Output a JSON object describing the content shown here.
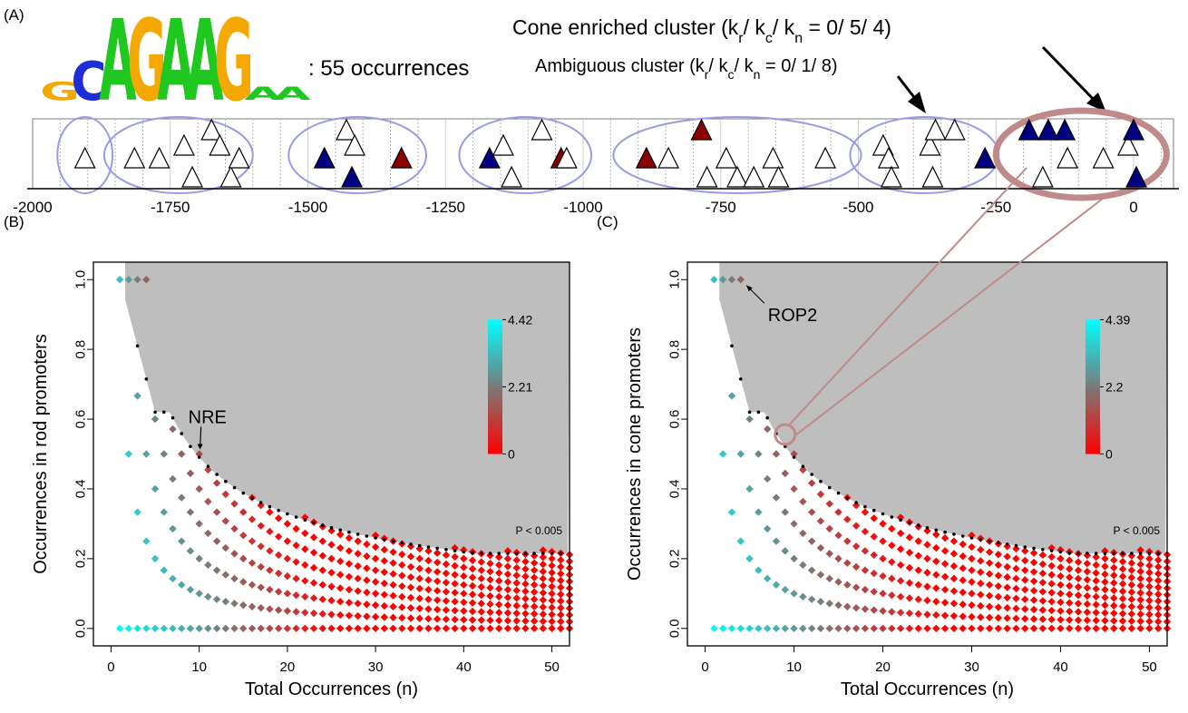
{
  "panel_labels": {
    "a": "(A)",
    "b": "(B)",
    "c": "(C)"
  },
  "motif": {
    "occurrences_text": ": 55 occurrences",
    "logo_letters": [
      {
        "base": "G",
        "color": "#f5a800",
        "height": 0.22
      },
      {
        "base": "C",
        "color": "#1f2dd6",
        "height": 0.48
      },
      {
        "base": "A",
        "color": "#1ec81e",
        "height": 1.0
      },
      {
        "base": "G",
        "color": "#f5a800",
        "height": 1.0
      },
      {
        "base": "A",
        "color": "#1ec81e",
        "height": 1.0
      },
      {
        "base": "A",
        "color": "#1ec81e",
        "height": 1.0
      },
      {
        "base": "G",
        "color": "#f5a800",
        "height": 1.0
      },
      {
        "base": "A",
        "color": "#1ec81e",
        "height": 0.16
      },
      {
        "base": "A",
        "color": "#1ec81e",
        "height": 0.16
      }
    ]
  },
  "annotations": {
    "cone_cluster": {
      "prefix": "Cone enriched cluster (k",
      "r": "r",
      "sep1": "/ k",
      "c": "c",
      "sep2": "/ k",
      "n": "n",
      "suffix": " = 0/ 5/ 4)"
    },
    "ambiguous_cluster": {
      "prefix": "Ambiguous cluster (k",
      "r": "r",
      "sep1": "/ k",
      "c": "c",
      "sep2": "/ k",
      "n": "n",
      "suffix": " = 0/ 1/ 8)"
    },
    "nre": "NRE",
    "rop2": "ROP2",
    "pvalue": "P < 0.005"
  },
  "colors": {
    "rod": "#8b0000",
    "cone": "#000080",
    "neutral": "#ffffff",
    "cluster_ring": "#9a9ae8",
    "cone_ring": "#c08a8a",
    "threshold_region": "#bebebe",
    "scale_high": "#00ffff",
    "scale_mid": "#7a7a7a",
    "scale_low": "#ff0000"
  },
  "chart_data": [
    {
      "type": "scatter",
      "panel": "A",
      "title": "",
      "xlim": [
        -2000,
        100
      ],
      "xticks": [
        -2000,
        -1750,
        -1500,
        -1250,
        -1000,
        -750,
        -500,
        -250,
        0
      ],
      "legend": "none",
      "series": [
        {
          "name": "",
          "points": [
            {
              "x": -1905,
              "lane": 1,
              "kind": "neutral"
            },
            {
              "x": -1815,
              "lane": 1,
              "kind": "neutral"
            },
            {
              "x": -1770,
              "lane": 1,
              "kind": "neutral"
            },
            {
              "x": -1725,
              "lane": 2,
              "kind": "neutral"
            },
            {
              "x": -1710,
              "lane": 0,
              "kind": "neutral"
            },
            {
              "x": -1675,
              "lane": 3,
              "kind": "neutral"
            },
            {
              "x": -1660,
              "lane": 2,
              "kind": "neutral"
            },
            {
              "x": -1640,
              "lane": 0,
              "kind": "neutral"
            },
            {
              "x": -1625,
              "lane": 1,
              "kind": "neutral"
            },
            {
              "x": -1470,
              "lane": 1,
              "kind": "cone"
            },
            {
              "x": -1430,
              "lane": 3,
              "kind": "neutral"
            },
            {
              "x": -1420,
              "lane": 0,
              "kind": "cone"
            },
            {
              "x": -1415,
              "lane": 2,
              "kind": "neutral"
            },
            {
              "x": -1330,
              "lane": 1,
              "kind": "rod"
            },
            {
              "x": -1170,
              "lane": 1,
              "kind": "cone"
            },
            {
              "x": -1145,
              "lane": 2,
              "kind": "neutral"
            },
            {
              "x": -1130,
              "lane": 0,
              "kind": "neutral"
            },
            {
              "x": -1075,
              "lane": 3,
              "kind": "neutral"
            },
            {
              "x": -1040,
              "lane": 1,
              "kind": "rod"
            },
            {
              "x": -1030,
              "lane": 1,
              "kind": "neutral"
            },
            {
              "x": -885,
              "lane": 1,
              "kind": "rod"
            },
            {
              "x": -845,
              "lane": 1,
              "kind": "neutral"
            },
            {
              "x": -785,
              "lane": 3,
              "kind": "rod"
            },
            {
              "x": -775,
              "lane": 0,
              "kind": "neutral"
            },
            {
              "x": -740,
              "lane": 1,
              "kind": "neutral"
            },
            {
              "x": -720,
              "lane": 0,
              "kind": "neutral"
            },
            {
              "x": -690,
              "lane": 0,
              "kind": "neutral"
            },
            {
              "x": -655,
              "lane": 1,
              "kind": "neutral"
            },
            {
              "x": -645,
              "lane": 0,
              "kind": "neutral"
            },
            {
              "x": -560,
              "lane": 1,
              "kind": "neutral"
            },
            {
              "x": -455,
              "lane": 2,
              "kind": "neutral"
            },
            {
              "x": -445,
              "lane": 1,
              "kind": "neutral"
            },
            {
              "x": -440,
              "lane": 0,
              "kind": "neutral"
            },
            {
              "x": -370,
              "lane": 2,
              "kind": "neutral"
            },
            {
              "x": -365,
              "lane": 0,
              "kind": "neutral"
            },
            {
              "x": -360,
              "lane": 3,
              "kind": "neutral"
            },
            {
              "x": -325,
              "lane": 3,
              "kind": "neutral"
            },
            {
              "x": -270,
              "lane": 1,
              "kind": "cone"
            },
            {
              "x": -190,
              "lane": 3,
              "kind": "cone"
            },
            {
              "x": -165,
              "lane": 0,
              "kind": "neutral"
            },
            {
              "x": -155,
              "lane": 3,
              "kind": "cone"
            },
            {
              "x": -125,
              "lane": 3,
              "kind": "cone"
            },
            {
              "x": -120,
              "lane": 1,
              "kind": "neutral"
            },
            {
              "x": -55,
              "lane": 1,
              "kind": "neutral"
            },
            {
              "x": -10,
              "lane": 2,
              "kind": "neutral"
            },
            {
              "x": 0,
              "lane": 3,
              "kind": "cone"
            },
            {
              "x": 5,
              "lane": 0,
              "kind": "cone"
            }
          ]
        }
      ],
      "clusters": [
        {
          "from": -1955,
          "to": -1855
        },
        {
          "from": -1870,
          "to": -1600
        },
        {
          "from": -1535,
          "to": -1285
        },
        {
          "from": -1225,
          "to": -985
        },
        {
          "from": -945,
          "to": -495
        },
        {
          "from": -515,
          "to": -245
        },
        {
          "from": -250,
          "to": 60,
          "kind": "cone"
        }
      ]
    },
    {
      "type": "scatter",
      "panel": "B",
      "title": "",
      "xlabel": "Total Occurrences (n)",
      "ylabel": "Occurrences in rod promoters",
      "xlim": [
        -2,
        52
      ],
      "ylim": [
        -0.05,
        1.05
      ],
      "xticks": [
        0,
        10,
        20,
        30,
        40,
        50
      ],
      "yticks": [
        0.0,
        0.2,
        0.4,
        0.6,
        0.8,
        1.0
      ],
      "yticklabels": [
        "0.0",
        "0.2",
        "0.4",
        "0.6",
        "0.8",
        "1.0"
      ],
      "colorbar": {
        "ticks": [
          "4.42",
          "2.21",
          "0"
        ],
        "max": 4.42
      },
      "grid": false,
      "legend": "none",
      "nre_point": {
        "n": 10,
        "fraction": 0.5
      }
    },
    {
      "type": "scatter",
      "panel": "C",
      "title": "",
      "xlabel": "Total Occurrences (n)",
      "ylabel": "Occurrences in cone promoters",
      "xlim": [
        -2,
        52
      ],
      "ylim": [
        -0.05,
        1.05
      ],
      "xticks": [
        0,
        10,
        20,
        30,
        40,
        50
      ],
      "yticks": [
        0.0,
        0.2,
        0.4,
        0.6,
        0.8,
        1.0
      ],
      "yticklabels": [
        "0.0",
        "0.2",
        "0.4",
        "0.6",
        "0.8",
        "1.0"
      ],
      "colorbar": {
        "ticks": [
          "4.39",
          "2.2",
          "0"
        ],
        "max": 4.39
      },
      "grid": false,
      "legend": "none",
      "rop2_point": {
        "n": 4,
        "fraction": 1.0
      },
      "highlight_point": {
        "n": 9,
        "fraction": 0.556
      }
    }
  ]
}
